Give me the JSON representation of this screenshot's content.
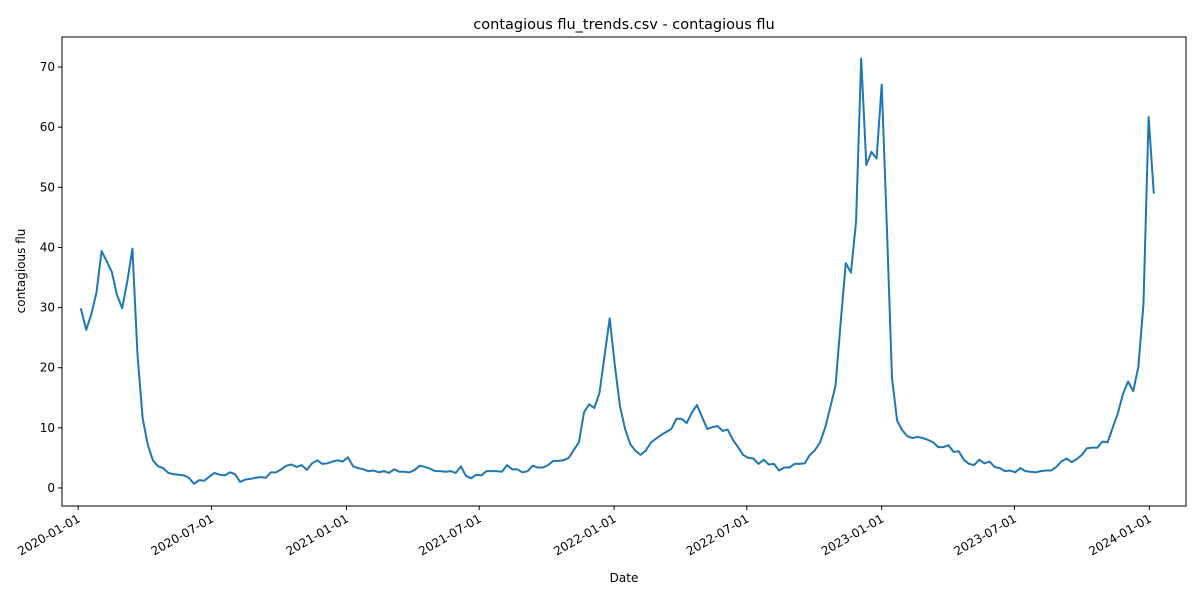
{
  "chart_data": {
    "type": "line",
    "title": "contagious flu_trends.csv - contagious flu",
    "xlabel": "Date",
    "ylabel": "contagious flu",
    "xlim": [
      "2019-12-10",
      "2024-02-20"
    ],
    "ylim": [
      -3,
      75
    ],
    "x_ticks": [
      "2020-01-01",
      "2020-07-01",
      "2021-01-01",
      "2021-07-01",
      "2022-01-01",
      "2022-07-01",
      "2023-01-01",
      "2023-07-01",
      "2024-01-01"
    ],
    "y_ticks": [
      0,
      10,
      20,
      30,
      40,
      50,
      60,
      70
    ],
    "grid": false,
    "line_color": "#1f77b4",
    "series": [
      {
        "x": [
          "2020-01-05",
          "2020-01-12",
          "2020-01-19",
          "2020-01-26",
          "2020-02-02",
          "2020-02-09",
          "2020-02-16",
          "2020-02-23",
          "2020-03-01",
          "2020-03-08",
          "2020-03-15",
          "2020-03-22",
          "2020-03-29",
          "2020-04-05",
          "2020-04-12",
          "2020-04-19",
          "2020-04-26",
          "2020-05-03",
          "2020-05-10",
          "2020-05-17",
          "2020-05-24",
          "2020-05-31",
          "2020-06-07",
          "2020-06-14",
          "2020-06-21",
          "2020-06-28",
          "2020-07-05",
          "2020-07-12",
          "2020-07-19",
          "2020-07-26",
          "2020-08-02",
          "2020-08-09",
          "2020-08-16",
          "2020-08-23",
          "2020-08-30",
          "2020-09-06",
          "2020-09-13",
          "2020-09-20",
          "2020-09-27",
          "2020-10-04",
          "2020-10-11",
          "2020-10-18",
          "2020-10-25",
          "2020-11-01",
          "2020-11-08",
          "2020-11-15",
          "2020-11-22",
          "2020-11-29",
          "2020-12-06",
          "2020-12-13",
          "2020-12-20",
          "2020-12-27",
          "2021-01-03",
          "2021-01-10",
          "2021-01-17",
          "2021-01-24",
          "2021-01-31",
          "2021-02-07",
          "2021-02-14",
          "2021-02-21",
          "2021-02-28",
          "2021-03-07",
          "2021-03-14",
          "2021-03-21",
          "2021-03-28",
          "2021-04-04",
          "2021-04-11",
          "2021-04-18",
          "2021-04-25",
          "2021-05-02",
          "2021-05-09",
          "2021-05-16",
          "2021-05-23",
          "2021-05-30",
          "2021-06-06",
          "2021-06-13",
          "2021-06-20",
          "2021-06-27",
          "2021-07-04",
          "2021-07-11",
          "2021-07-18",
          "2021-07-25",
          "2021-08-01",
          "2021-08-08",
          "2021-08-15",
          "2021-08-22",
          "2021-08-29",
          "2021-09-05",
          "2021-09-12",
          "2021-09-19",
          "2021-09-26",
          "2021-10-03",
          "2021-10-10",
          "2021-10-17",
          "2021-10-24",
          "2021-10-31",
          "2021-11-07",
          "2021-11-14",
          "2021-11-21",
          "2021-11-28",
          "2021-12-05",
          "2021-12-12",
          "2021-12-19",
          "2021-12-26",
          "2022-01-02",
          "2022-01-09",
          "2022-01-16",
          "2022-01-23",
          "2022-01-30",
          "2022-02-06",
          "2022-02-13",
          "2022-02-20",
          "2022-02-27",
          "2022-03-06",
          "2022-03-13",
          "2022-03-20",
          "2022-03-27",
          "2022-04-03",
          "2022-04-10",
          "2022-04-17",
          "2022-04-24",
          "2022-05-01",
          "2022-05-08",
          "2022-05-15",
          "2022-05-22",
          "2022-05-29",
          "2022-06-05",
          "2022-06-12",
          "2022-06-19",
          "2022-06-26",
          "2022-07-03",
          "2022-07-10",
          "2022-07-17",
          "2022-07-24",
          "2022-07-31",
          "2022-08-07",
          "2022-08-14",
          "2022-08-21",
          "2022-08-28",
          "2022-09-04",
          "2022-09-11",
          "2022-09-18",
          "2022-09-25",
          "2022-10-02",
          "2022-10-09",
          "2022-10-16",
          "2022-10-23",
          "2022-10-30",
          "2022-11-06",
          "2022-11-13",
          "2022-11-20",
          "2022-11-27",
          "2022-12-04",
          "2022-12-11",
          "2022-12-18",
          "2022-12-25",
          "2023-01-01",
          "2023-01-08",
          "2023-01-15",
          "2023-01-22",
          "2023-01-29",
          "2023-02-05",
          "2023-02-12",
          "2023-02-19",
          "2023-02-26",
          "2023-03-05",
          "2023-03-12",
          "2023-03-19",
          "2023-03-26",
          "2023-04-02",
          "2023-04-09",
          "2023-04-16",
          "2023-04-23",
          "2023-04-30",
          "2023-05-07",
          "2023-05-14",
          "2023-05-21",
          "2023-05-28",
          "2023-06-04",
          "2023-06-11",
          "2023-06-18",
          "2023-06-25",
          "2023-07-02",
          "2023-07-09",
          "2023-07-16",
          "2023-07-23",
          "2023-07-30",
          "2023-08-06",
          "2023-08-13",
          "2023-08-20",
          "2023-08-27",
          "2023-09-03",
          "2023-09-10",
          "2023-09-17",
          "2023-09-24",
          "2023-10-01",
          "2023-10-08",
          "2023-10-15",
          "2023-10-22",
          "2023-10-29",
          "2023-11-05",
          "2023-11-12",
          "2023-11-19",
          "2023-11-26",
          "2023-12-03",
          "2023-12-10",
          "2023-12-17",
          "2023-12-24",
          "2023-12-31",
          "2024-01-07"
        ],
        "y": [
          29.7,
          26.3,
          28.9,
          32.5,
          39.4,
          37.7,
          35.9,
          32.1,
          29.9,
          34.3,
          39.8,
          22.1,
          11.6,
          7.2,
          4.6,
          3.6,
          3.3,
          2.5,
          2.3,
          2.2,
          2.1,
          1.7,
          0.7,
          1.3,
          1.2,
          1.9,
          2.5,
          2.2,
          2.1,
          2.6,
          2.3,
          1.0,
          1.4,
          1.5,
          1.7,
          1.8,
          1.7,
          2.6,
          2.6,
          3.1,
          3.7,
          3.9,
          3.5,
          3.8,
          3.0,
          4.1,
          4.6,
          4.0,
          4.1,
          4.4,
          4.6,
          4.4,
          5.1,
          3.6,
          3.3,
          3.1,
          2.8,
          2.9,
          2.6,
          2.8,
          2.5,
          3.1,
          2.7,
          2.7,
          2.6,
          3.0,
          3.7,
          3.5,
          3.2,
          2.8,
          2.8,
          2.7,
          2.8,
          2.5,
          3.6,
          2.0,
          1.6,
          2.2,
          2.1,
          2.8,
          2.8,
          2.8,
          2.7,
          3.8,
          3.1,
          3.1,
          2.6,
          2.8,
          3.7,
          3.4,
          3.4,
          3.8,
          4.5,
          4.5,
          4.6,
          5.0,
          6.3,
          7.6,
          12.6,
          13.9,
          13.3,
          15.8,
          22.0,
          28.2,
          20.4,
          13.6,
          9.8,
          7.3,
          6.2,
          5.5,
          6.2,
          7.5,
          8.2,
          8.8,
          9.3,
          9.8,
          11.5,
          11.5,
          10.8,
          12.5,
          13.8,
          11.8,
          9.8,
          10.1,
          10.3,
          9.5,
          9.7,
          8.0,
          6.8,
          5.5,
          5.0,
          4.9,
          4.0,
          4.7,
          3.9,
          4.0,
          2.9,
          3.4,
          3.4,
          4.0,
          4.0,
          4.1,
          5.5,
          6.3,
          7.6,
          10.1,
          13.5,
          17.0,
          27.5,
          37.4,
          35.8,
          44.3,
          71.4,
          53.7,
          55.9,
          54.8,
          67.1,
          43.5,
          18.3,
          11.2,
          9.6,
          8.6,
          8.3,
          8.5,
          8.3,
          8.0,
          7.6,
          6.8,
          6.8,
          7.1,
          6.0,
          6.1,
          4.7,
          4.0,
          3.8,
          4.7,
          4.1,
          4.4,
          3.5,
          3.3,
          2.8,
          2.9,
          2.6,
          3.3,
          2.8,
          2.7,
          2.6,
          2.8,
          2.9,
          2.9,
          3.5,
          4.4,
          4.9,
          4.3,
          4.8,
          5.5,
          6.6,
          6.7,
          6.7,
          7.7,
          7.6,
          10.0,
          12.4,
          15.6,
          17.7,
          16.1,
          20.1,
          30.6,
          61.7,
          49.1
        ]
      }
    ]
  }
}
